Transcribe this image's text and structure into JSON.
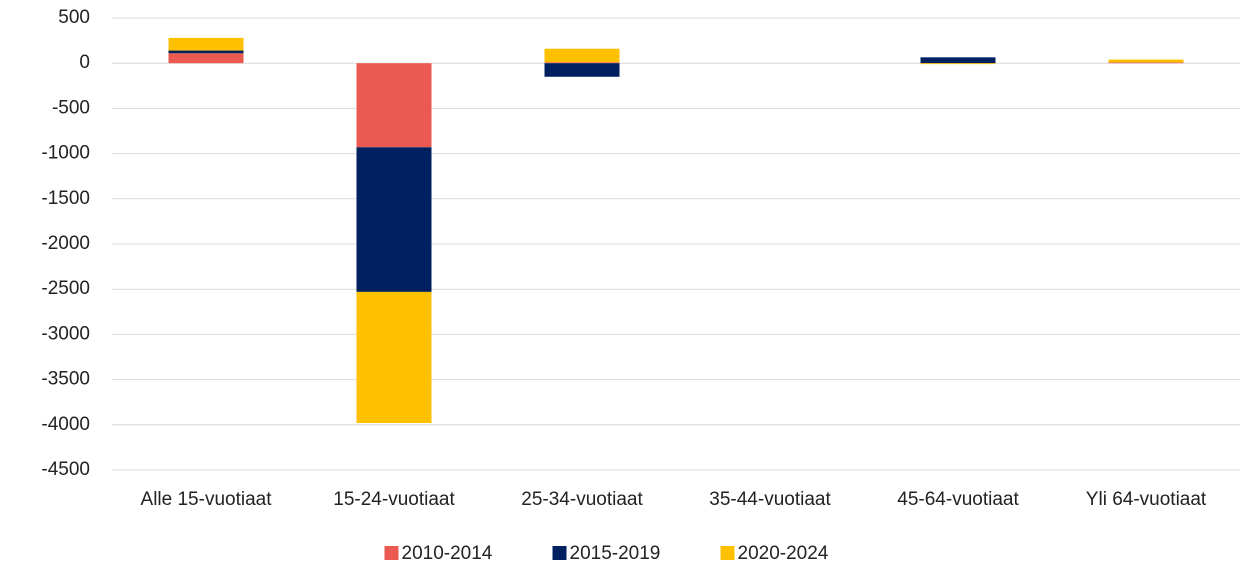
{
  "chart_data": {
    "type": "stacked_bar",
    "categories": [
      "Alle 15-vuotiaat",
      "15-24-vuotiaat",
      "25-34-vuotiaat",
      "35-44-vuotiaat",
      "45-64-vuotiaat",
      "Yli 64-vuotiaat"
    ],
    "series": [
      {
        "name": "2010-2014",
        "color": "#eb5a50",
        "values": [
          110,
          -930,
          10,
          0,
          0,
          10
        ]
      },
      {
        "name": "2015-2019",
        "color": "#002060",
        "values": [
          30,
          -1600,
          -150,
          0,
          65,
          0
        ]
      },
      {
        "name": "2020-2024",
        "color": "#ffc000",
        "values": [
          140,
          -1450,
          150,
          0,
          -10,
          30
        ]
      }
    ],
    "ylim": [
      -4500,
      500
    ],
    "yticks": [
      500,
      0,
      -500,
      -1000,
      -1500,
      -2000,
      -2500,
      -3000,
      -3500,
      -4000,
      -4500
    ],
    "grid": true,
    "legend": "bottom"
  }
}
